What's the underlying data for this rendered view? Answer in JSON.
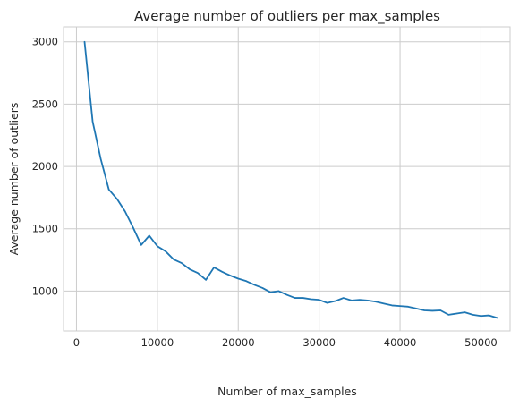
{
  "chart_data": {
    "type": "line",
    "title": "Average number of outliers per max_samples",
    "xlabel": "Number of max_samples",
    "ylabel": "Average number of outliers",
    "xlim": [
      -1600,
      53600
    ],
    "ylim": [
      680,
      3120
    ],
    "xticks": [
      0,
      10000,
      20000,
      30000,
      40000,
      50000
    ],
    "yticks": [
      1000,
      1500,
      2000,
      2500,
      3000
    ],
    "grid": true,
    "legend": "none",
    "series": [
      {
        "color": "#1f77b4",
        "x": [
          1000,
          2000,
          3000,
          4000,
          5000,
          6000,
          7000,
          8000,
          9000,
          10000,
          11000,
          12000,
          13000,
          14000,
          15000,
          16000,
          17000,
          18000,
          19000,
          20000,
          21000,
          22000,
          23000,
          24000,
          25000,
          26000,
          27000,
          28000,
          29000,
          30000,
          31000,
          32000,
          33000,
          34000,
          35000,
          36000,
          37000,
          38000,
          39000,
          40000,
          41000,
          42000,
          43000,
          44000,
          45000,
          46000,
          47000,
          48000,
          49000,
          50000,
          51000,
          52000
        ],
        "y": [
          3000,
          2360,
          2060,
          1815,
          1740,
          1640,
          1510,
          1370,
          1445,
          1360,
          1320,
          1255,
          1225,
          1175,
          1145,
          1090,
          1190,
          1155,
          1125,
          1100,
          1080,
          1050,
          1025,
          990,
          1000,
          970,
          945,
          945,
          935,
          930,
          905,
          920,
          945,
          925,
          930,
          925,
          915,
          900,
          885,
          880,
          875,
          860,
          845,
          842,
          845,
          810,
          820,
          830,
          810,
          800,
          805,
          785
        ]
      }
    ]
  }
}
